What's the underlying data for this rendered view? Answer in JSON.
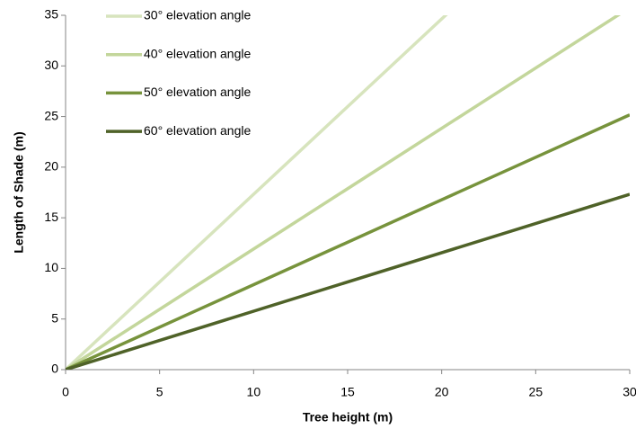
{
  "chart_data": {
    "type": "line",
    "x_label": "Tree height (m)",
    "y_label": "Length of Shade (m)",
    "x": [
      0,
      30
    ],
    "series": [
      {
        "name": "30° elevation angle",
        "color": "#d7e4bd",
        "values": [
          0,
          51.96
        ]
      },
      {
        "name": "40° elevation angle",
        "color": "#c3d69b",
        "values": [
          0,
          35.75
        ]
      },
      {
        "name": "50° elevation angle",
        "color": "#77933c",
        "values": [
          0,
          25.17
        ]
      },
      {
        "name": "60° elevation angle",
        "color": "#4f6228",
        "values": [
          0,
          17.32
        ]
      }
    ],
    "xlim": [
      0,
      30
    ],
    "xticks": [
      0,
      5,
      10,
      15,
      20,
      25,
      30
    ],
    "ylim": [
      0,
      35
    ],
    "yticks": [
      0,
      5,
      10,
      15,
      20,
      25,
      30,
      35
    ],
    "grid": false,
    "legend": "top-left"
  }
}
